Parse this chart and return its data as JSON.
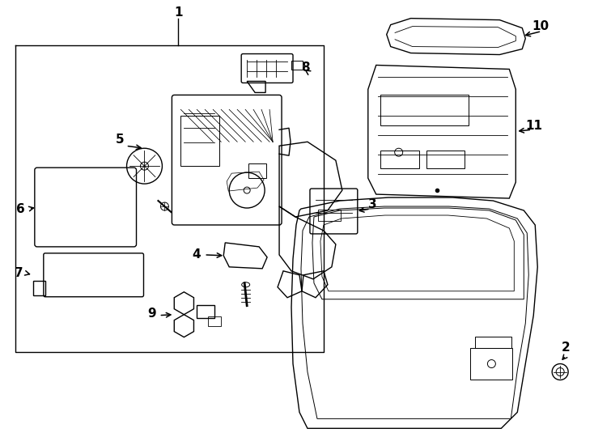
{
  "bg_color": "#ffffff",
  "line_color": "#000000",
  "lw": 1.0,
  "fig_width": 7.34,
  "fig_height": 5.4,
  "dpi": 100
}
